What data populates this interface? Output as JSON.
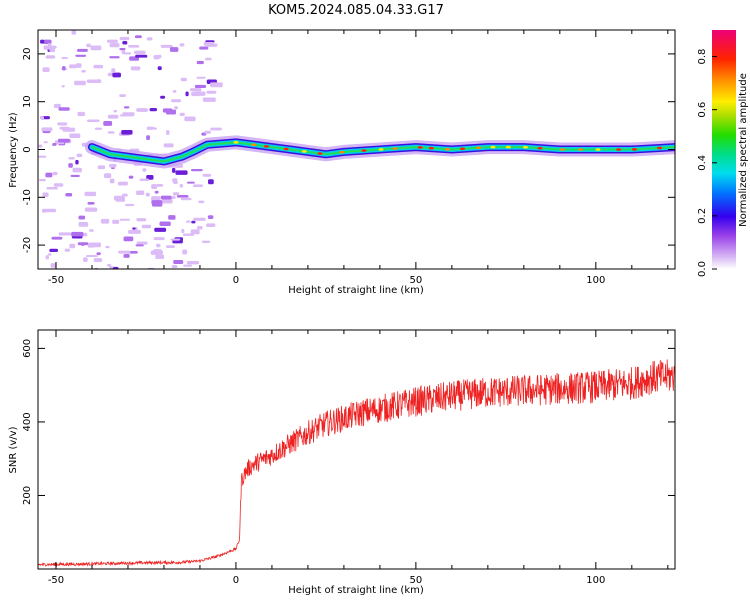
{
  "figure": {
    "title": "KOM5.2024.085.04.33.G17"
  },
  "chart_data": [
    {
      "type": "heatmap",
      "xlabel": "Height of straight line (km)",
      "ylabel": "Frequency (Hz)",
      "xlim": [
        -55,
        122
      ],
      "ylim": [
        -25,
        25
      ],
      "xticks": [
        -50,
        0,
        50,
        100
      ],
      "yticks": [
        -20,
        -10,
        0,
        10,
        20
      ],
      "ridge": [
        {
          "x": -40,
          "y": 0.5
        },
        {
          "x": -35,
          "y": -1
        },
        {
          "x": -30,
          "y": -1.5
        },
        {
          "x": -25,
          "y": -2
        },
        {
          "x": -20,
          "y": -2.5
        },
        {
          "x": -15,
          "y": -1.5
        },
        {
          "x": -12,
          "y": -0.5
        },
        {
          "x": -8,
          "y": 1
        },
        {
          "x": 0,
          "y": 1.5
        },
        {
          "x": 5,
          "y": 1
        },
        {
          "x": 10,
          "y": 0.5
        },
        {
          "x": 15,
          "y": 0
        },
        {
          "x": 20,
          "y": -0.5
        },
        {
          "x": 25,
          "y": -1
        },
        {
          "x": 30,
          "y": -0.5
        },
        {
          "x": 40,
          "y": 0
        },
        {
          "x": 50,
          "y": 0.5
        },
        {
          "x": 60,
          "y": 0
        },
        {
          "x": 70,
          "y": 0.5
        },
        {
          "x": 80,
          "y": 0.5
        },
        {
          "x": 90,
          "y": 0
        },
        {
          "x": 100,
          "y": 0
        },
        {
          "x": 110,
          "y": 0
        },
        {
          "x": 122,
          "y": 0.5
        }
      ],
      "colorbar": {
        "label": "Normalized spectral amplitude",
        "range": [
          0,
          0.9
        ],
        "ticks": [
          0.0,
          0.2,
          0.4,
          0.6,
          0.8
        ]
      }
    },
    {
      "type": "line",
      "xlabel": "Height of straight line (km)",
      "ylabel": "SNR (v/v)",
      "xlim": [
        -55,
        122
      ],
      "ylim": [
        0,
        650
      ],
      "xticks": [
        -50,
        0,
        50,
        100
      ],
      "yticks": [
        200,
        400,
        600
      ],
      "series": [
        {
          "color": "#ee2222",
          "x": [
            -55,
            -45,
            -35,
            -25,
            -15,
            -10,
            -5,
            0,
            1,
            1.5,
            3,
            5,
            10,
            15,
            20,
            25,
            30,
            35,
            40,
            50,
            60,
            70,
            80,
            90,
            100,
            110,
            115,
            122
          ],
          "y": [
            12,
            13,
            15,
            17,
            18,
            22,
            35,
            55,
            80,
            240,
            270,
            285,
            310,
            340,
            370,
            395,
            410,
            425,
            435,
            455,
            470,
            480,
            485,
            490,
            495,
            505,
            520,
            525
          ]
        }
      ]
    }
  ]
}
